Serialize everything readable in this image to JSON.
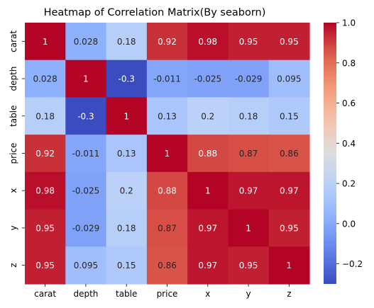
{
  "chart_data": {
    "type": "heatmap",
    "title": "Heatmap of Correlation Matrix(By seaborn)",
    "x_categories": [
      "carat",
      "depth",
      "table",
      "price",
      "x",
      "y",
      "z"
    ],
    "y_categories": [
      "carat",
      "depth",
      "table",
      "price",
      "x",
      "y",
      "z"
    ],
    "values": [
      [
        1,
        0.028,
        0.18,
        0.92,
        0.98,
        0.95,
        0.95
      ],
      [
        0.028,
        1,
        -0.3,
        -0.011,
        -0.025,
        -0.029,
        0.095
      ],
      [
        0.18,
        -0.3,
        1,
        0.13,
        0.2,
        0.18,
        0.15
      ],
      [
        0.92,
        -0.011,
        0.13,
        1,
        0.88,
        0.87,
        0.86
      ],
      [
        0.98,
        -0.025,
        0.2,
        0.88,
        1,
        0.97,
        0.97
      ],
      [
        0.95,
        -0.029,
        0.18,
        0.87,
        0.97,
        1,
        0.95
      ],
      [
        0.95,
        0.095,
        0.15,
        0.86,
        0.97,
        0.95,
        1
      ]
    ],
    "annotations": [
      [
        "1",
        "0.028",
        "0.18",
        "0.92",
        "0.98",
        "0.95",
        "0.95"
      ],
      [
        "0.028",
        "1",
        "-0.3",
        "-0.011",
        "-0.025",
        "-0.029",
        "0.095"
      ],
      [
        "0.18",
        "-0.3",
        "1",
        "0.13",
        "0.2",
        "0.18",
        "0.15"
      ],
      [
        "0.92",
        "-0.011",
        "0.13",
        "1",
        "0.88",
        "0.87",
        "0.86"
      ],
      [
        "0.98",
        "-0.025",
        "0.2",
        "0.88",
        "1",
        "0.97",
        "0.97"
      ],
      [
        "0.95",
        "-0.029",
        "0.18",
        "0.87",
        "0.97",
        "1",
        "0.95"
      ],
      [
        "0.95",
        "0.095",
        "0.15",
        "0.86",
        "0.97",
        "0.95",
        "1"
      ]
    ],
    "colormap": "coolwarm",
    "colorbar": {
      "range": [
        -0.3,
        1.0
      ],
      "ticks": [
        -0.2,
        0.0,
        0.2,
        0.4,
        0.6,
        0.8,
        1.0
      ],
      "tick_labels": [
        "−0.2",
        "0.0",
        "0.2",
        "0.4",
        "0.6",
        "0.8",
        "1.0"
      ]
    },
    "grid": false,
    "legend": "colorbar-right"
  }
}
